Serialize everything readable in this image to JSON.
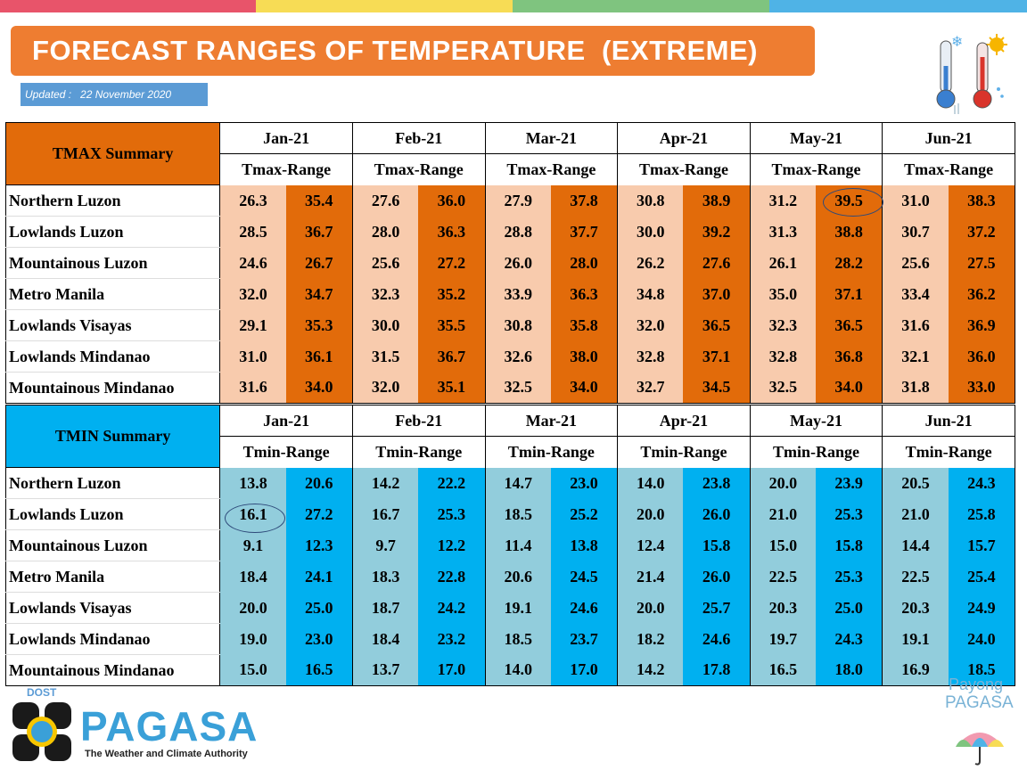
{
  "header": {
    "title": "FORECAST RANGES OF TEMPERATURE  (EXTREME)",
    "updated": "Updated :   22 November 2020"
  },
  "colors": {
    "orange": "#e26b0a",
    "orange_light": "#f8cbad",
    "blue": "#00b0f0",
    "blue_light": "#92cddc"
  },
  "tmax": {
    "label": "TMAX Summary",
    "months": [
      "Jan-21",
      "Feb-21",
      "Mar-21",
      "Apr-21",
      "May-21",
      "Jun-21"
    ],
    "range_labels": [
      "Tmax-Range",
      "Tmax-Range",
      "Tmax-Range",
      "Tmax-Range",
      "Tmax-Range",
      "Tmax-Range"
    ],
    "rows": [
      {
        "region": "Northern Luzon",
        "values": [
          "26.3",
          "35.4",
          "27.6",
          "36.0",
          "27.9",
          "37.8",
          "30.8",
          "38.9",
          "31.2",
          "39.5",
          "31.0",
          "38.3"
        ]
      },
      {
        "region": "Lowlands Luzon",
        "values": [
          "28.5",
          "36.7",
          "28.0",
          "36.3",
          "28.8",
          "37.7",
          "30.0",
          "39.2",
          "31.3",
          "38.8",
          "30.7",
          "37.2"
        ]
      },
      {
        "region": "Mountainous Luzon",
        "values": [
          "24.6",
          "26.7",
          "25.6",
          "27.2",
          "26.0",
          "28.0",
          "26.2",
          "27.6",
          "26.1",
          "28.2",
          "25.6",
          "27.5"
        ]
      },
      {
        "region": "Metro Manila",
        "values": [
          "32.0",
          "34.7",
          "32.3",
          "35.2",
          "33.9",
          "36.3",
          "34.8",
          "37.0",
          "35.0",
          "37.1",
          "33.4",
          "36.2"
        ]
      },
      {
        "region": "Lowlands Visayas",
        "values": [
          "29.1",
          "35.3",
          "30.0",
          "35.5",
          "30.8",
          "35.8",
          "32.0",
          "36.5",
          "32.3",
          "36.5",
          "31.6",
          "36.9"
        ]
      },
      {
        "region": "Lowlands Mindanao",
        "values": [
          "31.0",
          "36.1",
          "31.5",
          "36.7",
          "32.6",
          "38.0",
          "32.8",
          "37.1",
          "32.8",
          "36.8",
          "32.1",
          "36.0"
        ]
      },
      {
        "region": "Mountainous Mindanao",
        "values": [
          "31.6",
          "34.0",
          "32.0",
          "35.1",
          "32.5",
          "34.0",
          "32.7",
          "34.5",
          "32.5",
          "34.0",
          "31.8",
          "33.0"
        ]
      }
    ]
  },
  "tmin": {
    "label": "TMIN Summary",
    "months": [
      "Jan-21",
      "Feb-21",
      "Mar-21",
      "Apr-21",
      "May-21",
      "Jun-21"
    ],
    "range_labels": [
      "Tmin-Range",
      "Tmin-Range",
      "Tmin-Range",
      "Tmin-Range",
      "Tmin-Range",
      "Tmin-Range"
    ],
    "rows": [
      {
        "region": "Northern Luzon",
        "values": [
          "13.8",
          "20.6",
          "14.2",
          "22.2",
          "14.7",
          "23.0",
          "14.0",
          "23.8",
          "20.0",
          "23.9",
          "20.5",
          "24.3"
        ]
      },
      {
        "region": "Lowlands Luzon",
        "values": [
          "16.1",
          "27.2",
          "16.7",
          "25.3",
          "18.5",
          "25.2",
          "20.0",
          "26.0",
          "21.0",
          "25.3",
          "21.0",
          "25.8"
        ]
      },
      {
        "region": "Mountainous Luzon",
        "values": [
          "9.1",
          "12.3",
          "9.7",
          "12.2",
          "11.4",
          "13.8",
          "12.4",
          "15.8",
          "15.0",
          "15.8",
          "14.4",
          "15.7"
        ]
      },
      {
        "region": "Metro Manila",
        "values": [
          "18.4",
          "24.1",
          "18.3",
          "22.8",
          "20.6",
          "24.5",
          "21.4",
          "26.0",
          "22.5",
          "25.3",
          "22.5",
          "25.4"
        ]
      },
      {
        "region": "Lowlands Visayas",
        "values": [
          "20.0",
          "25.0",
          "18.7",
          "24.2",
          "19.1",
          "24.6",
          "20.0",
          "25.7",
          "20.3",
          "25.0",
          "20.3",
          "24.9"
        ]
      },
      {
        "region": "Lowlands Mindanao",
        "values": [
          "19.0",
          "23.0",
          "18.4",
          "23.2",
          "18.5",
          "23.7",
          "18.2",
          "24.6",
          "19.7",
          "24.3",
          "19.1",
          "24.0"
        ]
      },
      {
        "region": "Mountainous Mindanao",
        "values": [
          "15.0",
          "16.5",
          "13.7",
          "17.0",
          "14.0",
          "17.0",
          "14.2",
          "17.8",
          "16.5",
          "18.0",
          "16.9",
          "18.5"
        ]
      }
    ]
  },
  "footer": {
    "dost": "DOST",
    "pagasa": "PAGASA",
    "tagline": "The Weather and Climate Authority",
    "payong_1": "Payong",
    "payong_2": "PAGASA"
  }
}
